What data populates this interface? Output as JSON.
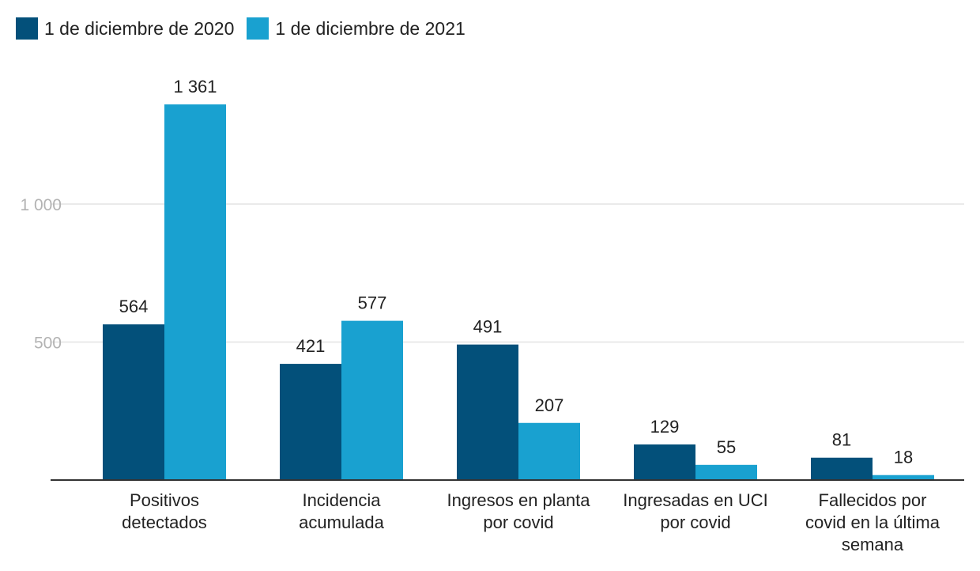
{
  "chart_data": {
    "type": "bar",
    "categories": [
      "Positivos detectados",
      "Incidencia acumulada",
      "Ingresos en planta por covid",
      "Ingresadas en UCI por covid",
      "Fallecidos por covid en la última semana"
    ],
    "category_lines": [
      [
        "Positivos",
        "detectados"
      ],
      [
        "Incidencia",
        "acumulada"
      ],
      [
        "Ingresos en planta",
        "por covid"
      ],
      [
        "Ingresadas en UCI",
        "por covid"
      ],
      [
        "Fallecidos por",
        "covid en la última",
        "semana"
      ]
    ],
    "series": [
      {
        "name": "1 de diciembre de 2020",
        "color": "#03507a",
        "values": [
          564,
          421,
          491,
          129,
          81
        ],
        "labels": [
          "564",
          "421",
          "491",
          "129",
          "81"
        ]
      },
      {
        "name": "1 de diciembre de 2021",
        "color": "#19a1d0",
        "values": [
          1361,
          577,
          207,
          55,
          18
        ],
        "labels": [
          "1 361",
          "577",
          "207",
          "55",
          "18"
        ]
      }
    ],
    "yticks": [
      {
        "value": 500,
        "label": "500"
      },
      {
        "value": 1000,
        "label": "1 000"
      }
    ],
    "ylim": [
      0,
      1400
    ],
    "grid": true,
    "legend_position": "top-left",
    "title": "",
    "xlabel": "",
    "ylabel": ""
  }
}
